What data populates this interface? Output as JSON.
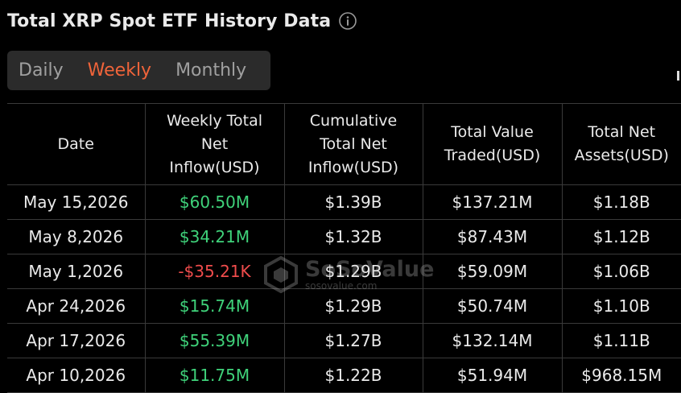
{
  "header": {
    "title": "Total XRP Spot ETF History Data",
    "info_icon": "info-circle-icon"
  },
  "tabs": [
    {
      "label": "Daily",
      "active": false
    },
    {
      "label": "Weekly",
      "active": true
    },
    {
      "label": "Monthly",
      "active": false
    }
  ],
  "colors": {
    "accent": "#f0643a",
    "positive": "#3fd27a",
    "negative": "#ef4c4c",
    "background": "#000000"
  },
  "table": {
    "columns": [
      "Date",
      "Weekly Total Net Inflow(USD)",
      "Cumulative Total Net Inflow(USD)",
      "Total Value Traded(USD)",
      "Total Net Assets(USD)"
    ],
    "rows": [
      {
        "date": "May 15,2026",
        "inflow": "$60.50M",
        "cumulative": "$1.39B",
        "traded": "$137.21M",
        "assets": "$1.18B",
        "sign": "pos"
      },
      {
        "date": "May 8,2026",
        "inflow": "$34.21M",
        "cumulative": "$1.32B",
        "traded": "$87.43M",
        "assets": "$1.12B",
        "sign": "pos"
      },
      {
        "date": "May 1,2026",
        "inflow": "-$35.21K",
        "cumulative": "$1.29B",
        "traded": "$59.09M",
        "assets": "$1.06B",
        "sign": "neg"
      },
      {
        "date": "Apr 24,2026",
        "inflow": "$15.74M",
        "cumulative": "$1.29B",
        "traded": "$50.74M",
        "assets": "$1.10B",
        "sign": "pos"
      },
      {
        "date": "Apr 17,2026",
        "inflow": "$55.39M",
        "cumulative": "$1.27B",
        "traded": "$132.14M",
        "assets": "$1.11B",
        "sign": "pos"
      },
      {
        "date": "Apr 10,2026",
        "inflow": "$11.75M",
        "cumulative": "$1.22B",
        "traded": "$51.94M",
        "assets": "$968.15M",
        "sign": "pos"
      }
    ]
  },
  "watermark": {
    "brand": "SoSoValue",
    "url": "sosovalue.com",
    "icon": "sosovalue-logo-icon"
  }
}
